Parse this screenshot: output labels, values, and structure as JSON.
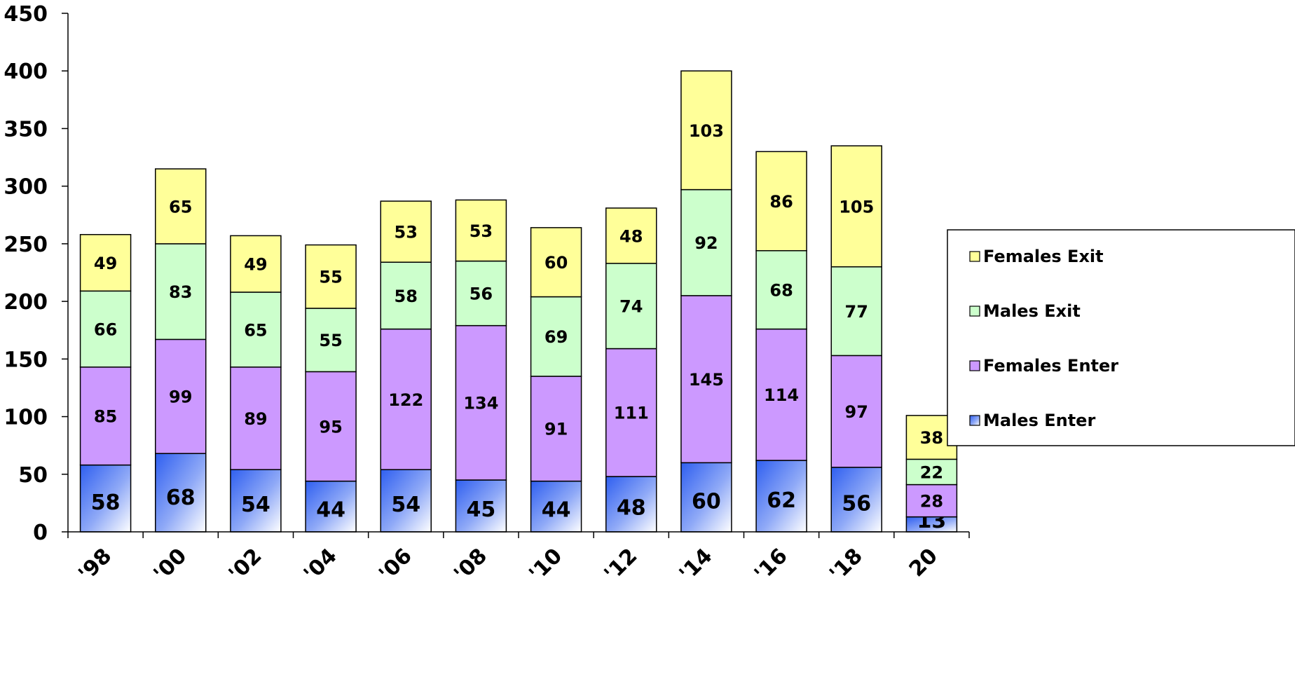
{
  "chart_data": {
    "type": "bar",
    "stacked": true,
    "categories": [
      "'98",
      "'00",
      "'02",
      "'04",
      "'06",
      "'08",
      "'10",
      "'12",
      "'14",
      "'16",
      "'18",
      "20"
    ],
    "series": [
      {
        "name": "Males Enter",
        "color": "#3f6ef2",
        "values": [
          58,
          68,
          54,
          44,
          54,
          45,
          44,
          48,
          60,
          62,
          56,
          13
        ]
      },
      {
        "name": "Females Enter",
        "color": "#cc99ff",
        "values": [
          85,
          99,
          89,
          95,
          122,
          134,
          91,
          111,
          145,
          114,
          97,
          28
        ]
      },
      {
        "name": "Males Exit",
        "color": "#ccffcc",
        "values": [
          66,
          83,
          65,
          55,
          58,
          56,
          69,
          74,
          92,
          68,
          77,
          22
        ]
      },
      {
        "name": "Females Exit",
        "color": "#ffff99",
        "values": [
          49,
          65,
          49,
          55,
          53,
          53,
          60,
          48,
          103,
          86,
          105,
          38
        ]
      }
    ],
    "ylim": [
      0,
      450
    ],
    "yticks": [
      0,
      50,
      100,
      150,
      200,
      250,
      300,
      350,
      400,
      450
    ],
    "title": "",
    "xlabel": "",
    "ylabel": "",
    "grid": false,
    "legend": {
      "position": "right",
      "order": [
        "Females Exit",
        "Males Exit",
        "Females Enter",
        "Males Enter"
      ]
    }
  }
}
